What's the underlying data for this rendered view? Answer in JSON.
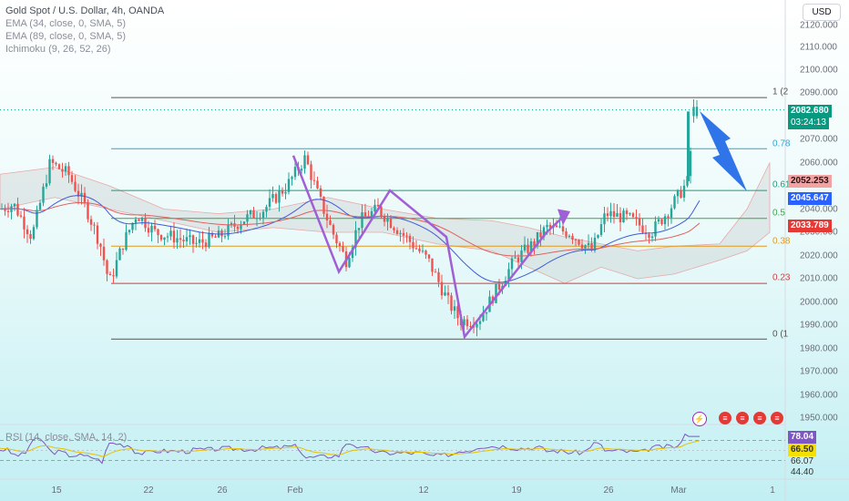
{
  "legend": {
    "title": "Gold Spot / U.S. Dollar, 4h, OANDA",
    "ema1": "EMA (34, close, 0, SMA, 5)",
    "ema2": "EMA (89, close, 0, SMA, 5)",
    "ichimoku": "Ichimoku (9, 26, 52, 26)"
  },
  "rsi_legend": "RSI (14, close, SMA, 14, 2)",
  "currency_button": "USD",
  "price_axis": [
    "2120.000",
    "2110.000",
    "2100.000",
    "2090.000",
    "2070.000",
    "2060.000",
    "2040.000",
    "2030.000",
    "2020.000",
    "2010.000",
    "2000.000",
    "1990.000",
    "1980.000",
    "1970.000",
    "1960.000",
    "1950.000"
  ],
  "time_axis": [
    "15",
    "22",
    "26",
    "Feb",
    "12",
    "19",
    "26",
    "Mar",
    "1"
  ],
  "fib_labels": [
    "1 (2",
    "0.78",
    "0.61",
    "0.5",
    "0.38",
    "0.23",
    "0 (1"
  ],
  "price_tags": {
    "last_price": "2082.680",
    "countdown": "03:24:13",
    "tag_2052": "2052.253",
    "tag_2045": "2045.647",
    "tag_2033": "2033.789"
  },
  "rsi_tags": [
    "78.04",
    "66.50",
    "66.07",
    "44.40"
  ],
  "colors": {
    "up": "#26a69a",
    "down": "#ef5350",
    "ema34": "#3f5bd6",
    "ema89": "#e0605e",
    "pattern": "#a15fd6",
    "arrow": "#2f74e8",
    "rsi": "#7e57c2"
  },
  "chart_data": {
    "type": "candlestick",
    "symbol": "Gold Spot / U.S. Dollar",
    "timeframe": "4h",
    "ylim": [
      1945,
      2125
    ],
    "fibonacci_levels": [
      {
        "label": "1 (2",
        "price": 2088
      },
      {
        "label": "0.78",
        "price": 2066
      },
      {
        "label": "0.61",
        "price": 2048
      },
      {
        "label": "0.5",
        "price": 2036
      },
      {
        "label": "0.38",
        "price": 2024
      },
      {
        "label": "0.23",
        "price": 2008
      },
      {
        "label": "0 (1",
        "price": 1984
      }
    ],
    "price_path": [
      [
        0,
        2040
      ],
      [
        15,
        2042
      ],
      [
        35,
        2028
      ],
      [
        55,
        2060
      ],
      [
        75,
        2055
      ],
      [
        95,
        2040
      ],
      [
        110,
        2025
      ],
      [
        120,
        2008
      ],
      [
        135,
        2025
      ],
      [
        150,
        2038
      ],
      [
        170,
        2030
      ],
      [
        190,
        2028
      ],
      [
        215,
        2025
      ],
      [
        240,
        2028
      ],
      [
        265,
        2035
      ],
      [
        290,
        2040
      ],
      [
        315,
        2050
      ],
      [
        335,
        2062
      ],
      [
        350,
        2045
      ],
      [
        365,
        2030
      ],
      [
        380,
        2018
      ],
      [
        395,
        2035
      ],
      [
        415,
        2040
      ],
      [
        440,
        2030
      ],
      [
        470,
        2018
      ],
      [
        492,
        2000
      ],
      [
        505,
        1992
      ],
      [
        525,
        1992
      ],
      [
        545,
        2005
      ],
      [
        565,
        2018
      ],
      [
        585,
        2025
      ],
      [
        600,
        2032
      ],
      [
        625,
        2030
      ],
      [
        650,
        2022
      ],
      [
        665,
        2038
      ],
      [
        690,
        2036
      ],
      [
        715,
        2030
      ],
      [
        735,
        2040
      ],
      [
        745,
        2046
      ],
      [
        755,
        2052
      ],
      [
        762,
        2082
      ],
      [
        768,
        2084
      ]
    ],
    "projection": {
      "from": 2082.68,
      "to": 2052.253
    },
    "last_price": 2082.68,
    "rsi": {
      "last": 78.04,
      "levels": [
        78.04,
        66.5,
        66.07,
        44.4
      ]
    }
  }
}
